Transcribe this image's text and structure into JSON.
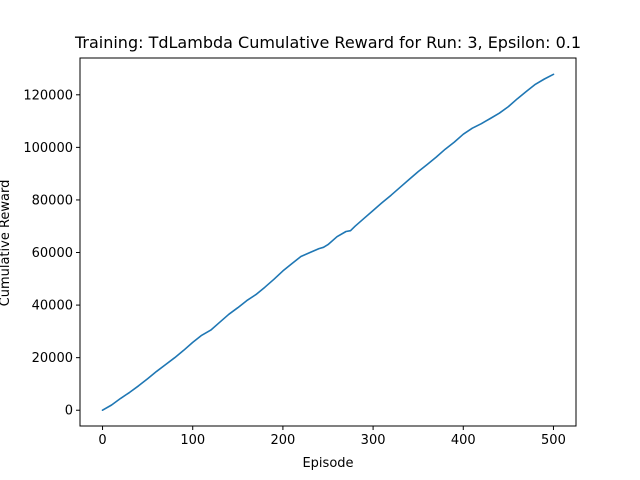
{
  "chart_data": {
    "type": "line",
    "title": "Training: TdLambda Cumulative Reward for Run: 3, Epsilon: 0.1",
    "xlabel": "Episode",
    "ylabel": "Cumulative Reward",
    "xlim": [
      -25,
      525
    ],
    "ylim": [
      -6000,
      134000
    ],
    "xticks": [
      0,
      100,
      200,
      300,
      400,
      500
    ],
    "yticks": [
      0,
      20000,
      40000,
      60000,
      80000,
      100000,
      120000
    ],
    "grid": false,
    "line_color": "#1f77b4",
    "series": [
      {
        "x": [
          0,
          10,
          20,
          30,
          40,
          50,
          60,
          70,
          80,
          90,
          100,
          110,
          120,
          130,
          140,
          150,
          160,
          170,
          180,
          190,
          200,
          210,
          220,
          230,
          240,
          245,
          250,
          260,
          270,
          275,
          280,
          290,
          300,
          310,
          320,
          330,
          340,
          350,
          360,
          370,
          380,
          390,
          400,
          410,
          420,
          425,
          430,
          440,
          450,
          460,
          470,
          480,
          490,
          500
        ],
        "y": [
          0,
          2000,
          4500,
          6800,
          9300,
          12000,
          14800,
          17400,
          20000,
          22800,
          25800,
          28500,
          30500,
          33500,
          36500,
          39000,
          41700,
          44000,
          46800,
          49800,
          53000,
          55800,
          58500,
          60000,
          61500,
          62000,
          63000,
          66000,
          68000,
          68300,
          70000,
          73000,
          76000,
          79000,
          81800,
          84800,
          87800,
          90800,
          93500,
          96300,
          99300,
          102000,
          105000,
          107300,
          109000,
          110000,
          111000,
          113000,
          115500,
          118500,
          121300,
          124000,
          126000,
          127800
        ]
      }
    ]
  }
}
